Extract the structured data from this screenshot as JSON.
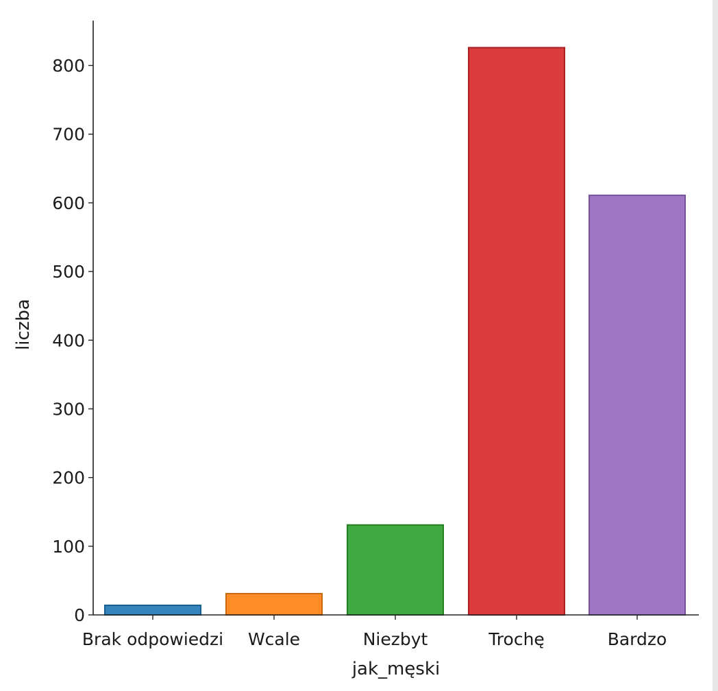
{
  "chart_data": {
    "type": "bar",
    "categories": [
      "Brak odpowiedzi",
      "Wcale",
      "Niezbyt",
      "Trochę",
      "Bardzo"
    ],
    "values": [
      14,
      31,
      131,
      826,
      611
    ],
    "colors": [
      "#1f77b4",
      "#ff7f0e",
      "#2ca02c",
      "#d62728",
      "#9467bd"
    ],
    "xlabel": "jak_męski",
    "ylabel": "liczba",
    "ylim": [
      0,
      860
    ],
    "yticks": [
      0,
      100,
      200,
      300,
      400,
      500,
      600,
      700,
      800
    ],
    "grid": false,
    "legend": "none"
  }
}
